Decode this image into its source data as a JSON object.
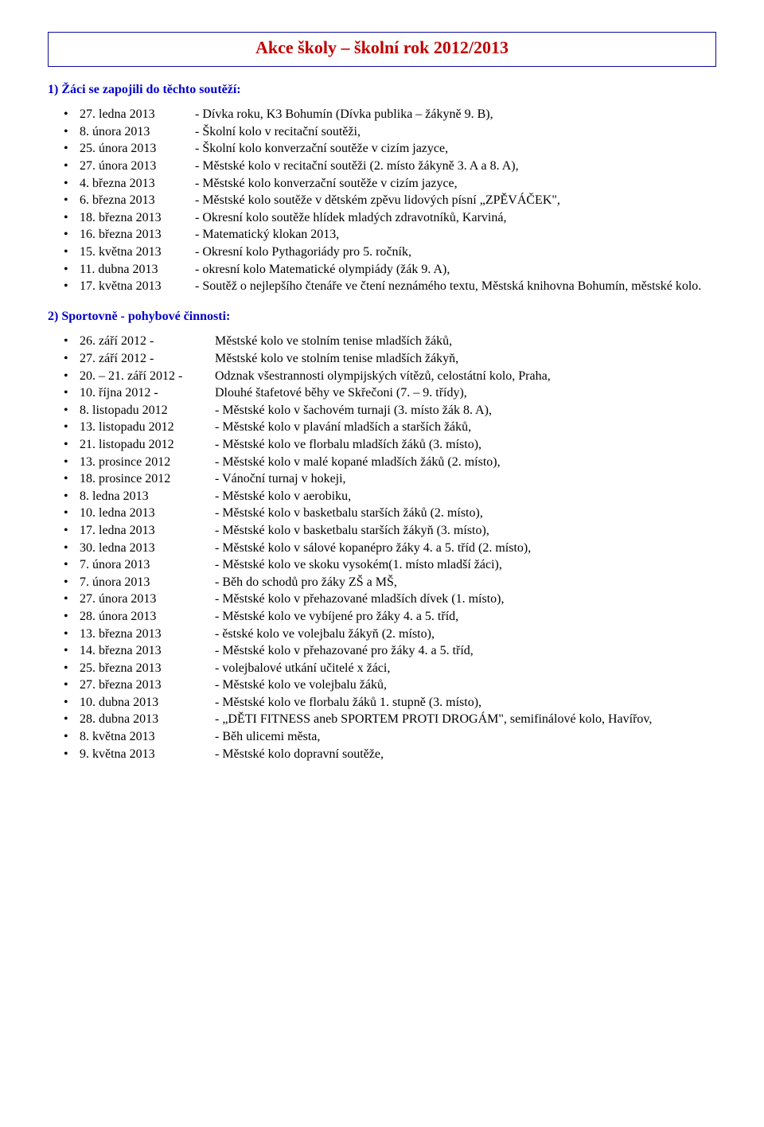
{
  "title": "Akce školy – školní rok  2012/2013",
  "section1": {
    "heading": "1) Žáci se zapojili do těchto soutěží:",
    "items": [
      {
        "date": "27. ledna 2013",
        "desc": "- Dívka roku, K3 Bohumín (Dívka publika – žákyně 9. B),"
      },
      {
        "date": "  8. února 2013",
        "desc": "- Školní kolo v recitační soutěži,"
      },
      {
        "date": "25. února 2013",
        "desc": "- Školní kolo konverzační soutěže v cizím jazyce,"
      },
      {
        "date": "27. února 2013",
        "desc": "- Městské kolo v recitační soutěži (2. místo žákyně 3. A a 8. A),"
      },
      {
        "date": "  4. března 2013",
        "desc": "- Městské kolo konverzační soutěže v cizím jazyce,"
      },
      {
        "date": "  6. března 2013",
        "desc": "- Městské kolo soutěže v dětském zpěvu lidových písní „ZPĚVÁČEK\","
      },
      {
        "date": "18. března 2013",
        "desc": "- Okresní kolo soutěže hlídek mladých zdravotníků, Karviná,"
      },
      {
        "date": "16. března 2013",
        "desc": "- Matematický klokan 2013,"
      },
      {
        "date": "15. května 2013",
        "desc": "- Okresní kolo Pythagoriády pro 5. ročník,"
      },
      {
        "date": "11. dubna 2013",
        "desc": "- okresní kolo Matematické olympiády (žák 9. A),"
      },
      {
        "date": "17. května 2013",
        "desc": "- Soutěž o nejlepšího čtenáře ve čtení neznámého textu, Městská knihovna Bohumín, městské kolo."
      }
    ]
  },
  "section2": {
    "heading": "2) Sportovně - pohybové činnosti:",
    "items": [
      {
        "date": "26. září 2012   -",
        "desc": "Městské kolo ve stolním tenise mladších žáků,"
      },
      {
        "date": "27. září 2012   -",
        "desc": "Městské kolo ve stolním tenise mladších žákyň,"
      },
      {
        "date": "20. – 21. září 2012 -",
        "desc": "Odznak všestrannosti olympijských vítězů, celostátní kolo, Praha,"
      },
      {
        "date": "10. října 2012  -",
        "desc": "Dlouhé štafetové běhy ve Skřečoni (7. – 9. třídy),"
      },
      {
        "date": "  8. listopadu 2012",
        "desc": "- Městské kolo v šachovém turnaji (3. místo žák 8. A),"
      },
      {
        "date": "13. listopadu 2012",
        "desc": "- Městské kolo v plavání mladších a starších žáků,"
      },
      {
        "date": "21. listopadu 2012",
        "desc": "- Městské kolo ve florbalu mladších žáků (3. místo),"
      },
      {
        "date": "13. prosince 2012",
        "desc": "- Městské kolo v malé kopané mladších žáků (2. místo),"
      },
      {
        "date": "18. prosince 2012",
        "desc": "- Vánoční turnaj v hokeji,"
      },
      {
        "date": "  8. ledna 2013",
        "desc": "- Městské kolo v aerobiku,"
      },
      {
        "date": "10. ledna 2013",
        "desc": "- Městské kolo v basketbalu starších žáků (2. místo),"
      },
      {
        "date": "17. ledna 2013",
        "desc": "- Městské kolo v basketbalu starších žákyň (3. místo),"
      },
      {
        "date": "30. ledna 2013",
        "desc": "- Městské kolo v sálové kopanépro žáky 4. a 5. tříd (2. místo),"
      },
      {
        "date": "  7. února 2013",
        "desc": "- Městské kolo ve skoku vysokém(1. místo mladší žáci),"
      },
      {
        "date": "  7. února 2013",
        "desc": "- Běh do schodů pro žáky ZŠ a MŠ,"
      },
      {
        "date": "27. února 2013",
        "desc": "- Městské kolo v přehazované mladších dívek (1. místo),"
      },
      {
        "date": "28. února 2013",
        "desc": "- Městské kolo ve vybíjené pro žáky 4. a 5. tříd,"
      },
      {
        "date": "13. března 2013",
        "desc": "- ěstské kolo ve volejbalu žákyň (2. místo),"
      },
      {
        "date": "14. března 2013",
        "desc": "- Městské kolo v přehazované pro žáky 4. a 5. tříd,"
      },
      {
        "date": "25. března 2013",
        "desc": "- volejbalové utkání učitelé x žáci,"
      },
      {
        "date": "27. března 2013",
        "desc": "- Městské kolo ve volejbalu žáků,"
      },
      {
        "date": "10. dubna 2013",
        "desc": "- Městské kolo ve florbalu žáků 1. stupně (3. místo),"
      },
      {
        "date": "28. dubna 2013",
        "desc": "- „DĚTI FITNESS aneb SPORTEM PROTI DROGÁM\", semifinálové kolo, Havířov,"
      },
      {
        "date": "  8. května 2013",
        "desc": "- Běh ulicemi města,"
      },
      {
        "date": "  9. května 2013",
        "desc": "- Městské kolo dopravní soutěže,"
      }
    ]
  }
}
